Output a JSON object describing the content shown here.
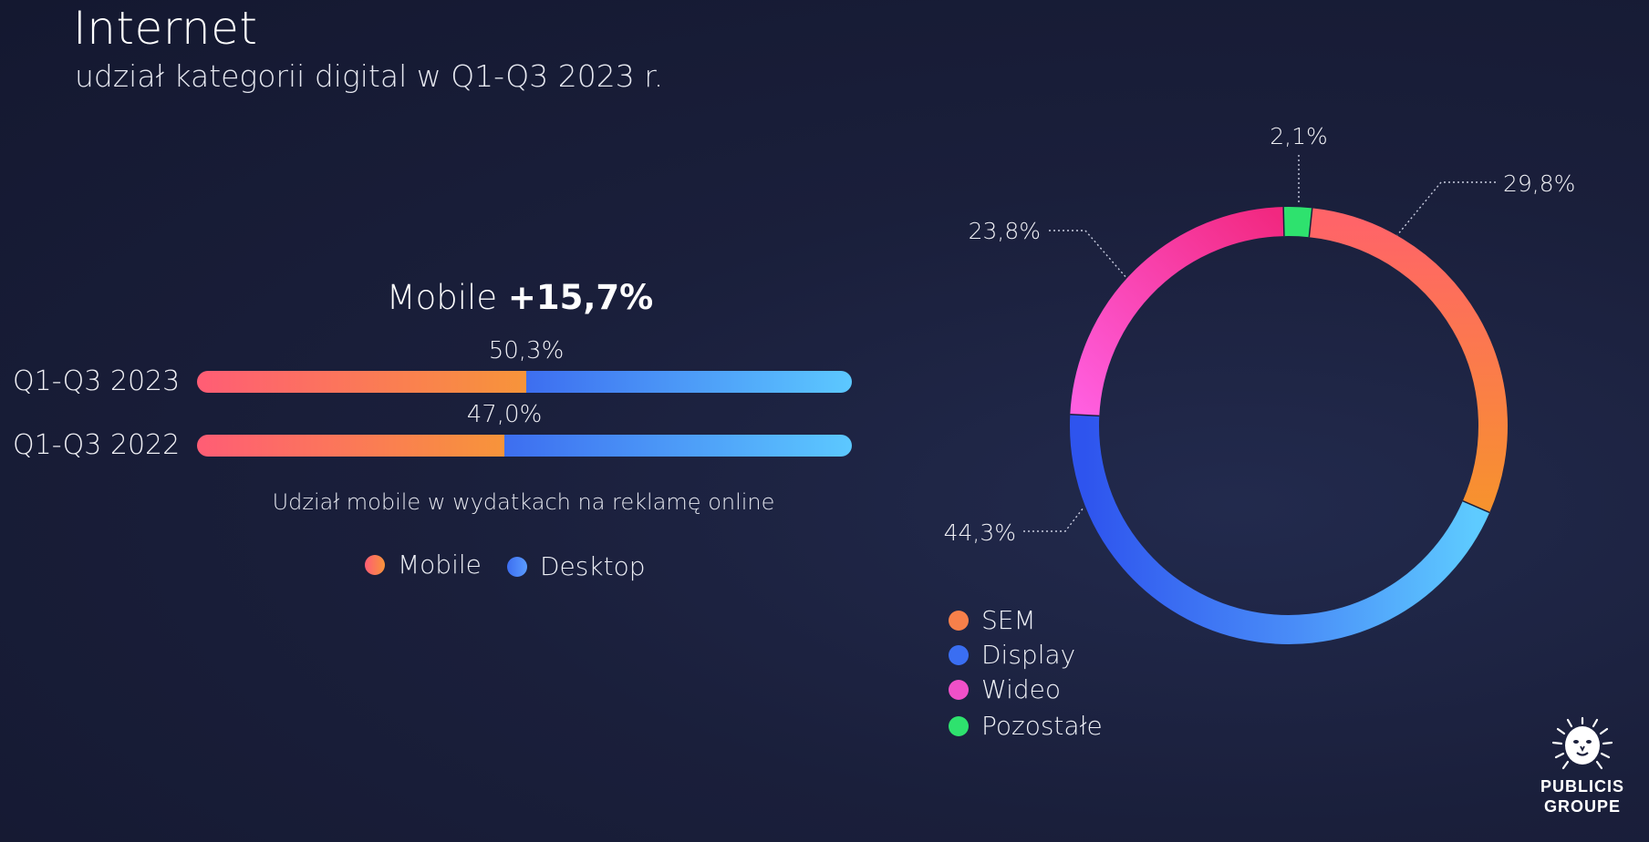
{
  "title": "Internet",
  "subtitle": "udział kategorii digital w Q1-Q3 2023 r.",
  "bar_section": {
    "headline_prefix": "Mobile ",
    "headline_value": "+15,7%",
    "rows": [
      {
        "label": "Q1-Q3 2023",
        "mobile_share_label": "50,3%"
      },
      {
        "label": "Q1-Q3 2022",
        "mobile_share_label": "47,0%"
      }
    ],
    "note": "Udział mobile w wydatkach na reklamę online",
    "legend": [
      {
        "label": "Mobile",
        "color": "#f7794d"
      },
      {
        "label": "Desktop",
        "color": "#3f74f2"
      }
    ]
  },
  "donut_legend": [
    {
      "label": "SEM",
      "color": "#f7804a"
    },
    {
      "label": "Display",
      "color": "#3a6ef2"
    },
    {
      "label": "Wideo",
      "color": "#f050c8"
    },
    {
      "label": "Pozostałe",
      "color": "#2ee26e"
    }
  ],
  "logo": {
    "line1": "PUBLICIS",
    "line2": "GROUPE"
  },
  "chart_data": [
    {
      "type": "bar",
      "categories": [
        "Q1-Q3 2023",
        "Q1-Q3 2022"
      ],
      "series": [
        {
          "name": "Mobile",
          "values": [
            50.3,
            47.0
          ]
        },
        {
          "name": "Desktop",
          "values": [
            49.7,
            53.0
          ]
        }
      ],
      "data_labels": [
        "50,3%",
        "47,0%"
      ],
      "stacked": true,
      "orientation": "horizontal",
      "title": "Mobile +15,7%",
      "xlabel": "Udział mobile w wydatkach na reklamę online",
      "ylabel": "",
      "xlim": [
        0,
        100
      ],
      "legend": [
        "Mobile",
        "Desktop"
      ],
      "legend_position": "bottom"
    },
    {
      "type": "pie",
      "style": "donut",
      "categories": [
        "Pozostałe",
        "SEM",
        "Display",
        "Wideo"
      ],
      "values": [
        2.1,
        29.8,
        44.3,
        23.8
      ],
      "labels": [
        "2,1%",
        "29,8%",
        "44,3%",
        "23,8%"
      ],
      "colors": [
        "#2ee26e",
        "#f7804a",
        "#3a6ef2",
        "#f050c8"
      ],
      "title": "",
      "legend": [
        "SEM",
        "Display",
        "Wideo",
        "Pozostałe"
      ],
      "legend_position": "bottom-left"
    }
  ]
}
